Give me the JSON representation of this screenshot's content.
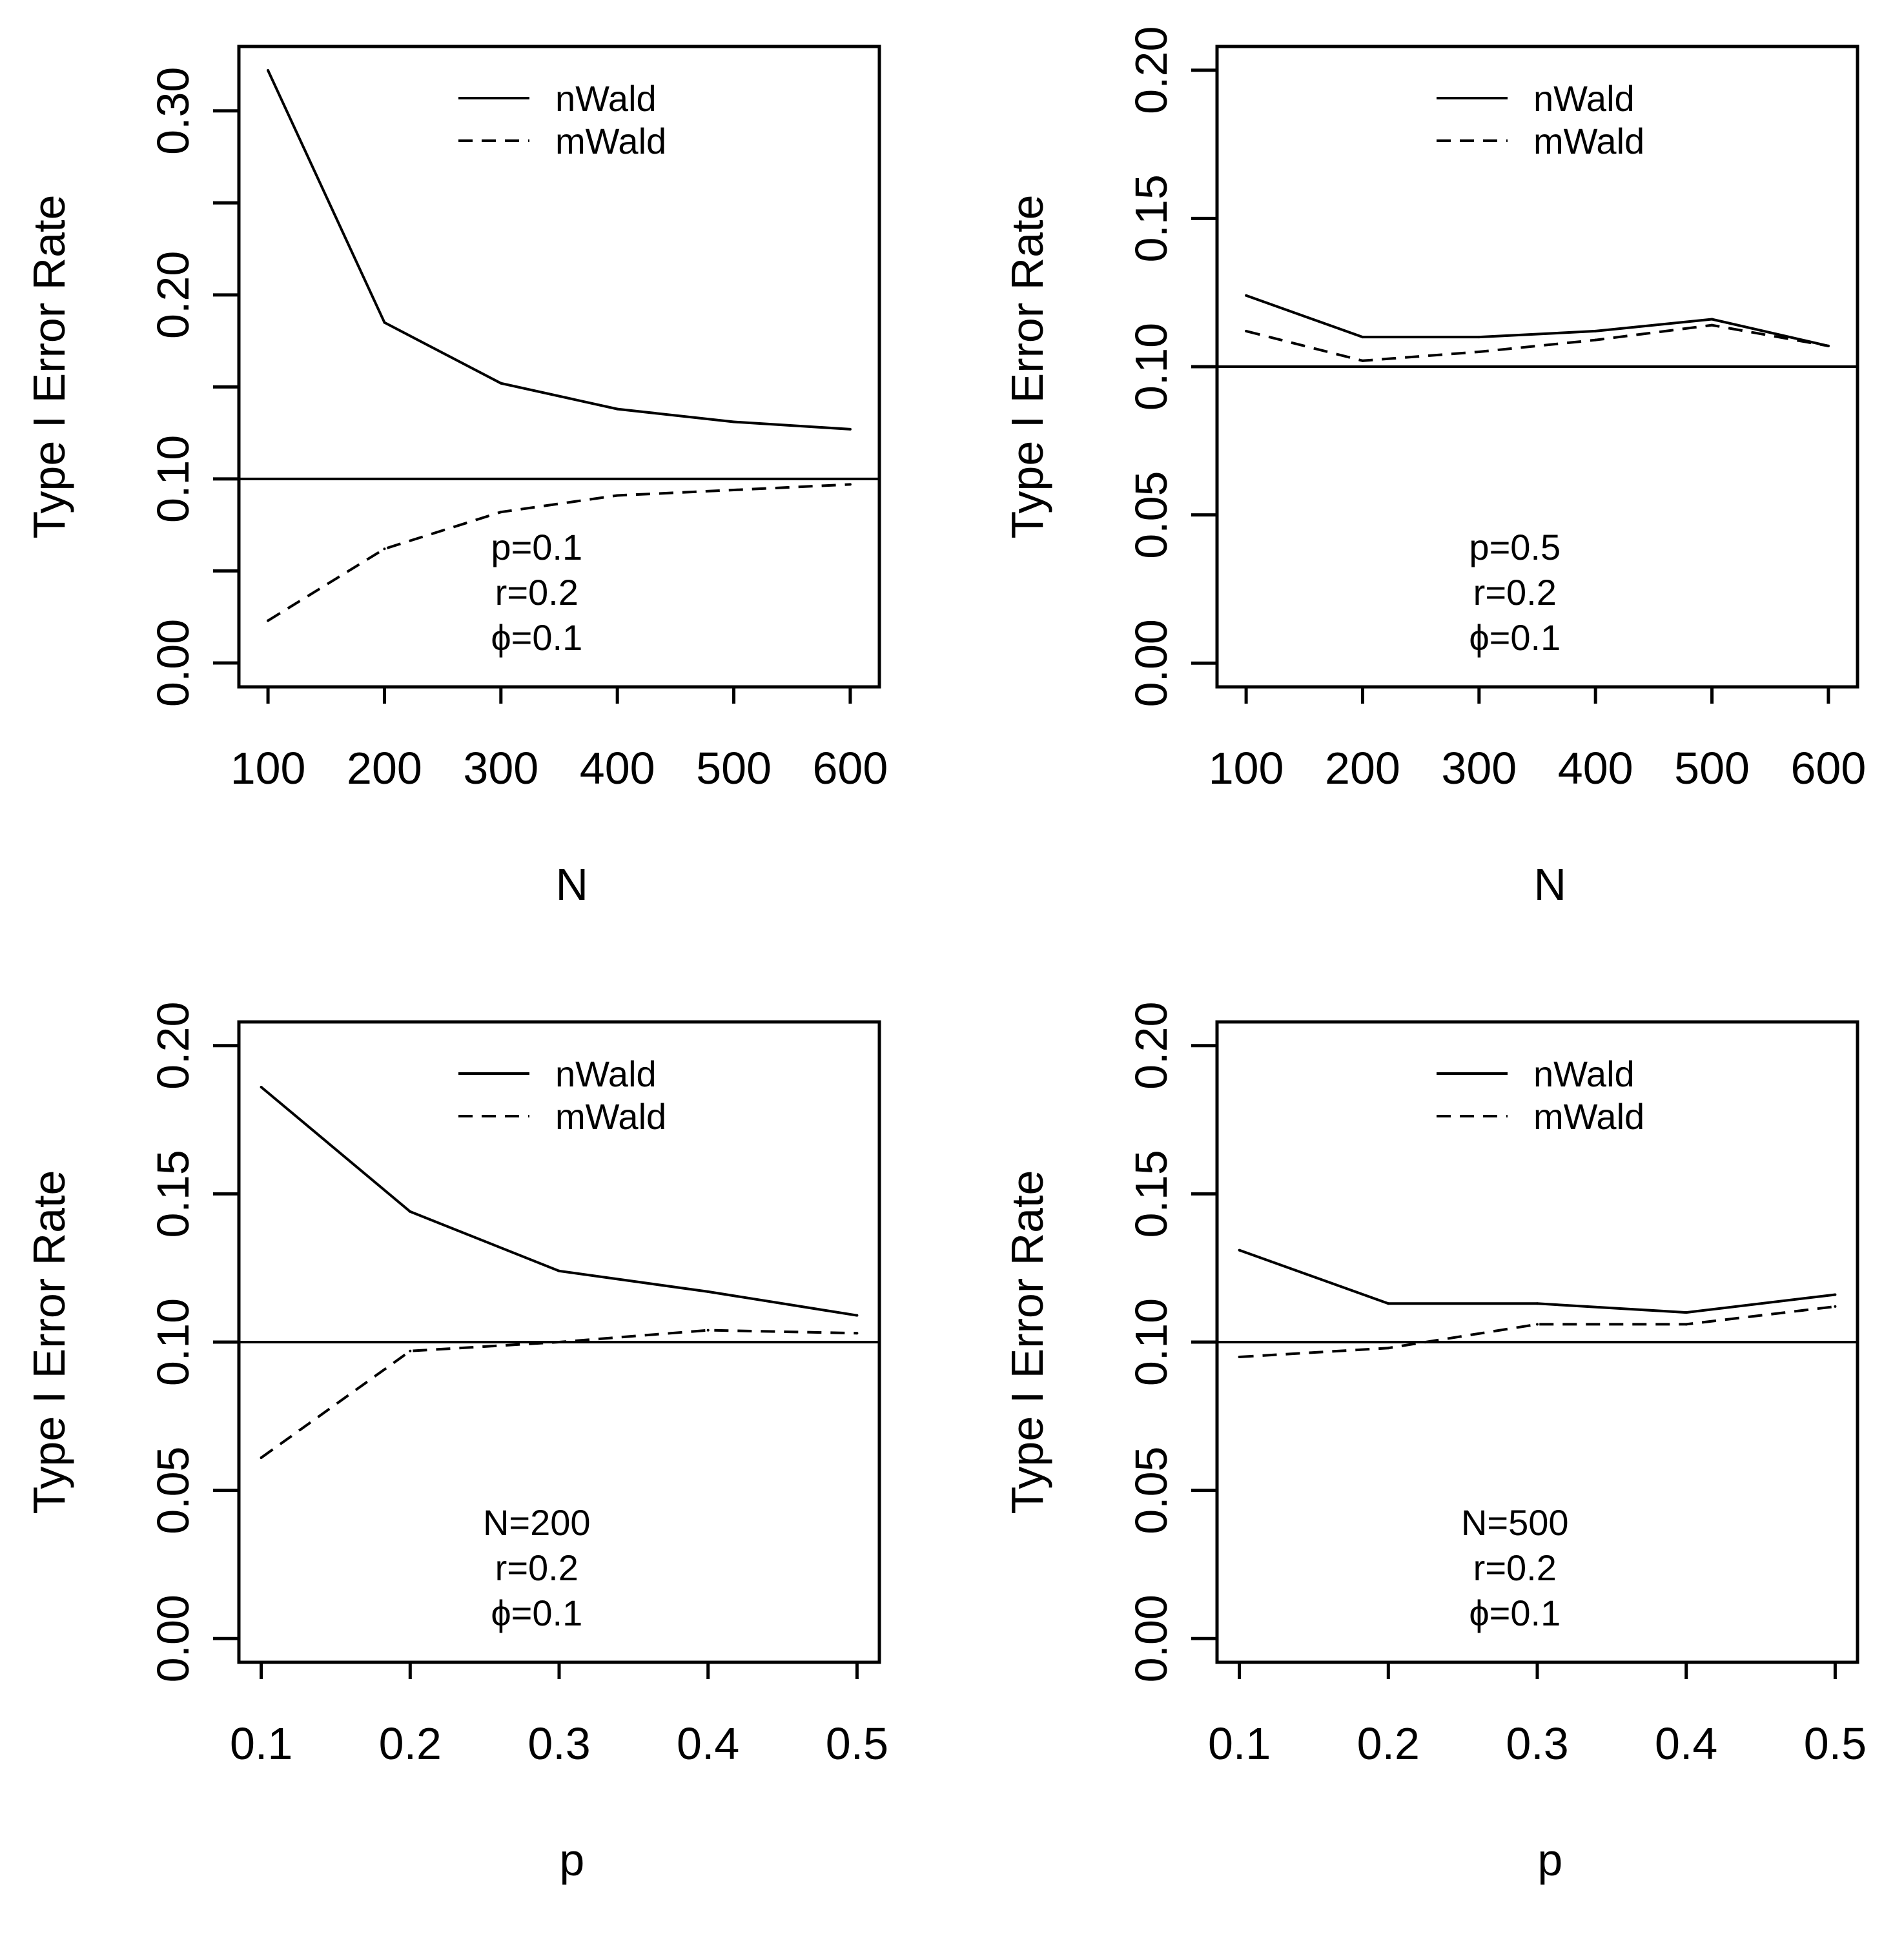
{
  "chart_data": [
    {
      "type": "line",
      "x": [
        100,
        200,
        300,
        400,
        500,
        600
      ],
      "xticks": [
        "100",
        "200",
        "300",
        "400",
        "500",
        "600"
      ],
      "xlim": [
        75,
        625
      ],
      "ylim": [
        -0.013,
        0.335
      ],
      "yticks": [
        "0.00",
        "0.10",
        "0.20",
        "0.30"
      ],
      "ytick_values": [
        0.0,
        0.1,
        0.2,
        0.3
      ],
      "yminor": [
        0.05,
        0.15,
        0.25
      ],
      "xlabel": "N",
      "ylabel": "Type I Error Rate",
      "reference_line": 0.1,
      "series": [
        {
          "name": "nWald",
          "style": "solid",
          "values": [
            0.322,
            0.185,
            0.152,
            0.138,
            0.131,
            0.127
          ]
        },
        {
          "name": "mWald",
          "style": "dashed",
          "values": [
            0.023,
            0.062,
            0.082,
            0.091,
            0.094,
            0.097
          ]
        }
      ],
      "annotation": [
        "p=0.1",
        "r=0.2",
        "ϕ=0.1"
      ]
    },
    {
      "type": "line",
      "x": [
        100,
        200,
        300,
        400,
        500,
        600
      ],
      "xticks": [
        "100",
        "200",
        "300",
        "400",
        "500",
        "600"
      ],
      "xlim": [
        75,
        625
      ],
      "ylim": [
        -0.008,
        0.208
      ],
      "yticks": [
        "0.00",
        "0.05",
        "0.10",
        "0.15",
        "0.20"
      ],
      "ytick_values": [
        0.0,
        0.05,
        0.1,
        0.15,
        0.2
      ],
      "yminor": [],
      "xlabel": "N",
      "ylabel": "Type I Error Rate",
      "reference_line": 0.1,
      "series": [
        {
          "name": "nWald",
          "style": "solid",
          "values": [
            0.124,
            0.11,
            0.11,
            0.112,
            0.116,
            0.107
          ]
        },
        {
          "name": "mWald",
          "style": "dashed",
          "values": [
            0.112,
            0.102,
            0.105,
            0.109,
            0.114,
            0.107
          ]
        }
      ],
      "annotation": [
        "p=0.5",
        "r=0.2",
        "ϕ=0.1"
      ]
    },
    {
      "type": "line",
      "x": [
        0.1,
        0.2,
        0.3,
        0.4,
        0.5
      ],
      "xticks": [
        "0.1",
        "0.2",
        "0.3",
        "0.4",
        "0.5"
      ],
      "xlim": [
        0.085,
        0.515
      ],
      "ylim": [
        -0.008,
        0.208
      ],
      "yticks": [
        "0.00",
        "0.05",
        "0.10",
        "0.15",
        "0.20"
      ],
      "ytick_values": [
        0.0,
        0.05,
        0.1,
        0.15,
        0.2
      ],
      "yminor": [],
      "xlabel": "p",
      "ylabel": "Type I Error Rate",
      "reference_line": 0.1,
      "series": [
        {
          "name": "nWald",
          "style": "solid",
          "values": [
            0.186,
            0.144,
            0.124,
            0.117,
            0.109
          ]
        },
        {
          "name": "mWald",
          "style": "dashed",
          "values": [
            0.061,
            0.097,
            0.1,
            0.104,
            0.103
          ]
        }
      ],
      "annotation": [
        "N=200",
        "r=0.2",
        "ϕ=0.1"
      ]
    },
    {
      "type": "line",
      "x": [
        0.1,
        0.2,
        0.3,
        0.4,
        0.5
      ],
      "xticks": [
        "0.1",
        "0.2",
        "0.3",
        "0.4",
        "0.5"
      ],
      "xlim": [
        0.085,
        0.515
      ],
      "ylim": [
        -0.008,
        0.208
      ],
      "yticks": [
        "0.00",
        "0.05",
        "0.10",
        "0.15",
        "0.20"
      ],
      "ytick_values": [
        0.0,
        0.05,
        0.1,
        0.15,
        0.2
      ],
      "yminor": [],
      "xlabel": "p",
      "ylabel": "Type I Error Rate",
      "reference_line": 0.1,
      "series": [
        {
          "name": "nWald",
          "style": "solid",
          "values": [
            0.131,
            0.113,
            0.113,
            0.11,
            0.116
          ]
        },
        {
          "name": "mWald",
          "style": "dashed",
          "values": [
            0.095,
            0.098,
            0.106,
            0.106,
            0.112
          ]
        }
      ],
      "annotation": [
        "N=500",
        "r=0.2",
        "ϕ=0.1"
      ]
    }
  ]
}
